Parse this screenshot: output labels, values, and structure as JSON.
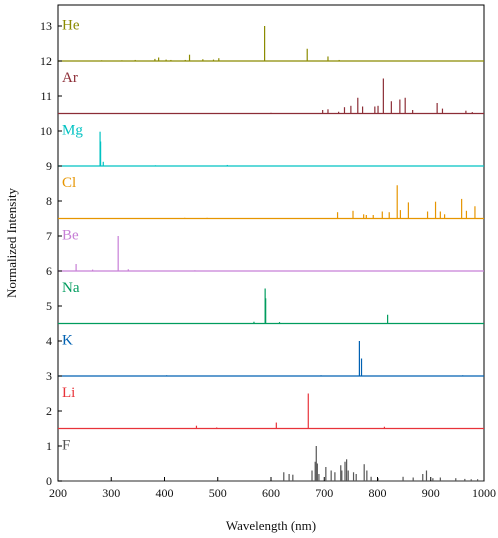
{
  "chart_data": {
    "type": "line",
    "xlabel": "Wavelength (nm)",
    "ylabel": "Normalized Intensity",
    "xlim": [
      200,
      1000
    ],
    "ylim": [
      0,
      13.6
    ],
    "x_ticks": [
      200,
      300,
      400,
      500,
      600,
      700,
      800,
      900,
      1000
    ],
    "y_ticks": [
      0,
      1,
      2,
      3,
      4,
      5,
      6,
      7,
      8,
      9,
      10,
      11,
      12,
      13
    ],
    "grid": false,
    "series": [
      {
        "name": "He",
        "color": "#8b8b00",
        "baseline": 12,
        "lines": [
          [
            282,
            0.02
          ],
          [
            320,
            0.02
          ],
          [
            345,
            0.03
          ],
          [
            382,
            0.06
          ],
          [
            389,
            0.1
          ],
          [
            403,
            0.04
          ],
          [
            412,
            0.03
          ],
          [
            439,
            0.03
          ],
          [
            447,
            0.18
          ],
          [
            472,
            0.05
          ],
          [
            492,
            0.04
          ],
          [
            502,
            0.08
          ],
          [
            588,
            1.0
          ],
          [
            668,
            0.35
          ],
          [
            707,
            0.13
          ],
          [
            728,
            0.03
          ]
        ]
      },
      {
        "name": "Ar",
        "color": "#8c2d36",
        "baseline": 10.5,
        "lines": [
          [
            430,
            0.01
          ],
          [
            600,
            0.02
          ],
          [
            697,
            0.1
          ],
          [
            707,
            0.12
          ],
          [
            727,
            0.05
          ],
          [
            738,
            0.18
          ],
          [
            750,
            0.22
          ],
          [
            763,
            0.45
          ],
          [
            772,
            0.2
          ],
          [
            795,
            0.2
          ],
          [
            801,
            0.22
          ],
          [
            811,
            1.0
          ],
          [
            826,
            0.35
          ],
          [
            842,
            0.4
          ],
          [
            852,
            0.45
          ],
          [
            866,
            0.1
          ],
          [
            912,
            0.3
          ],
          [
            922,
            0.14
          ],
          [
            966,
            0.08
          ],
          [
            978,
            0.04
          ]
        ]
      },
      {
        "name": "Mg",
        "color": "#00c2c2",
        "baseline": 9,
        "lines": [
          [
            279,
            0.98
          ],
          [
            280,
            0.7
          ],
          [
            285,
            0.12
          ],
          [
            383,
            0.02
          ],
          [
            518,
            0.03
          ]
        ]
      },
      {
        "name": "Cl",
        "color": "#e69500",
        "baseline": 7.5,
        "lines": [
          [
            438,
            0.02
          ],
          [
            480,
            0.02
          ],
          [
            725,
            0.18
          ],
          [
            754,
            0.22
          ],
          [
            774,
            0.12
          ],
          [
            779,
            0.1
          ],
          [
            792,
            0.1
          ],
          [
            809,
            0.2
          ],
          [
            822,
            0.18
          ],
          [
            837,
            0.95
          ],
          [
            843,
            0.24
          ],
          [
            858,
            0.46
          ],
          [
            894,
            0.2
          ],
          [
            909,
            0.48
          ],
          [
            918,
            0.2
          ],
          [
            926,
            0.12
          ],
          [
            958,
            0.56
          ],
          [
            967,
            0.22
          ],
          [
            983,
            0.35
          ]
        ]
      },
      {
        "name": "Be",
        "color": "#c77fd6",
        "baseline": 6,
        "lines": [
          [
            234,
            0.2
          ],
          [
            265,
            0.04
          ],
          [
            313,
            1.0
          ],
          [
            332,
            0.05
          ],
          [
            457,
            0.02
          ]
        ]
      },
      {
        "name": "Na",
        "color": "#009c5e",
        "baseline": 4.5,
        "lines": [
          [
            568,
            0.05
          ],
          [
            589,
            1.0
          ],
          [
            590,
            0.72
          ],
          [
            616,
            0.04
          ],
          [
            819,
            0.25
          ]
        ]
      },
      {
        "name": "K",
        "color": "#0061b2",
        "baseline": 3,
        "lines": [
          [
            404,
            0.02
          ],
          [
            694,
            0.02
          ],
          [
            766,
            1.0
          ],
          [
            770,
            0.5
          ],
          [
            960,
            0.02
          ]
        ]
      },
      {
        "name": "Li",
        "color": "#e8333a",
        "baseline": 1.5,
        "lines": [
          [
            460,
            0.08
          ],
          [
            498,
            0.03
          ],
          [
            610,
            0.17
          ],
          [
            670,
            1.0
          ],
          [
            813,
            0.05
          ]
        ]
      },
      {
        "name": "F",
        "color": "#555555",
        "baseline": 0,
        "lines": [
          [
            624,
            0.25
          ],
          [
            634,
            0.2
          ],
          [
            641,
            0.18
          ],
          [
            677,
            0.3
          ],
          [
            683,
            0.55
          ],
          [
            685,
            1.0
          ],
          [
            687,
            0.5
          ],
          [
            690,
            0.2
          ],
          [
            703,
            0.4
          ],
          [
            713,
            0.3
          ],
          [
            720,
            0.25
          ],
          [
            731,
            0.45
          ],
          [
            733,
            0.3
          ],
          [
            739,
            0.55
          ],
          [
            742,
            0.62
          ],
          [
            745,
            0.3
          ],
          [
            755,
            0.25
          ],
          [
            760,
            0.2
          ],
          [
            775,
            0.48
          ],
          [
            780,
            0.3
          ],
          [
            788,
            0.12
          ],
          [
            801,
            0.08
          ],
          [
            848,
            0.12
          ],
          [
            867,
            0.1
          ],
          [
            885,
            0.2
          ],
          [
            892,
            0.3
          ],
          [
            904,
            0.08
          ],
          [
            918,
            0.1
          ],
          [
            947,
            0.08
          ],
          [
            964,
            0.06
          ],
          [
            976,
            0.05
          ],
          [
            988,
            0.05
          ]
        ]
      }
    ]
  }
}
